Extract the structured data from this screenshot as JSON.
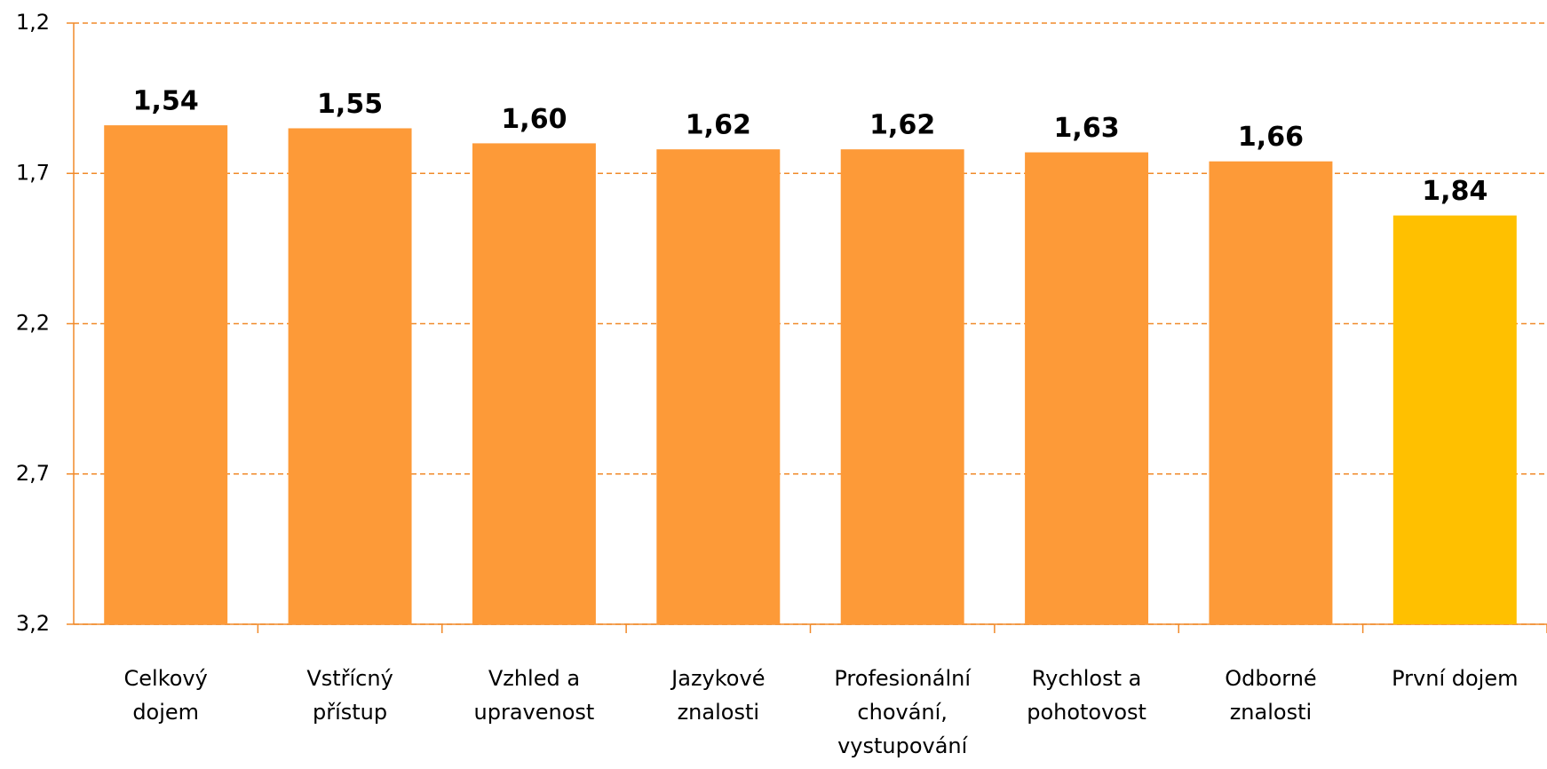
{
  "chart_data": {
    "type": "bar",
    "categories": [
      "Celkový\ndojem",
      "Vstřícný\npřístup",
      "Vzhled a\nupravenost",
      "Jazykové\nznalosti",
      "Profesionální\nchování,\nvystupování",
      "Rychlost a\npohotovost",
      "Odborné\nznalosti",
      "První dojem"
    ],
    "values": [
      1.54,
      1.55,
      1.6,
      1.62,
      1.62,
      1.63,
      1.66,
      1.84
    ],
    "value_labels": [
      "1,54",
      "1,55",
      "1,60",
      "1,62",
      "1,62",
      "1,63",
      "1,66",
      "1,84"
    ],
    "colors": [
      "#fd9a38",
      "#fd9a38",
      "#fd9a38",
      "#fd9a38",
      "#fd9a38",
      "#fd9a38",
      "#fd9a38",
      "#ffc000"
    ],
    "ylim": [
      3.2,
      1.2
    ],
    "yticks": [
      {
        "value": 1.2,
        "label": "1,2"
      },
      {
        "value": 1.7,
        "label": "1,7"
      },
      {
        "value": 2.2,
        "label": "2,2"
      },
      {
        "value": 2.7,
        "label": "2,7"
      },
      {
        "value": 3.2,
        "label": "3,2"
      }
    ],
    "grid": true
  }
}
